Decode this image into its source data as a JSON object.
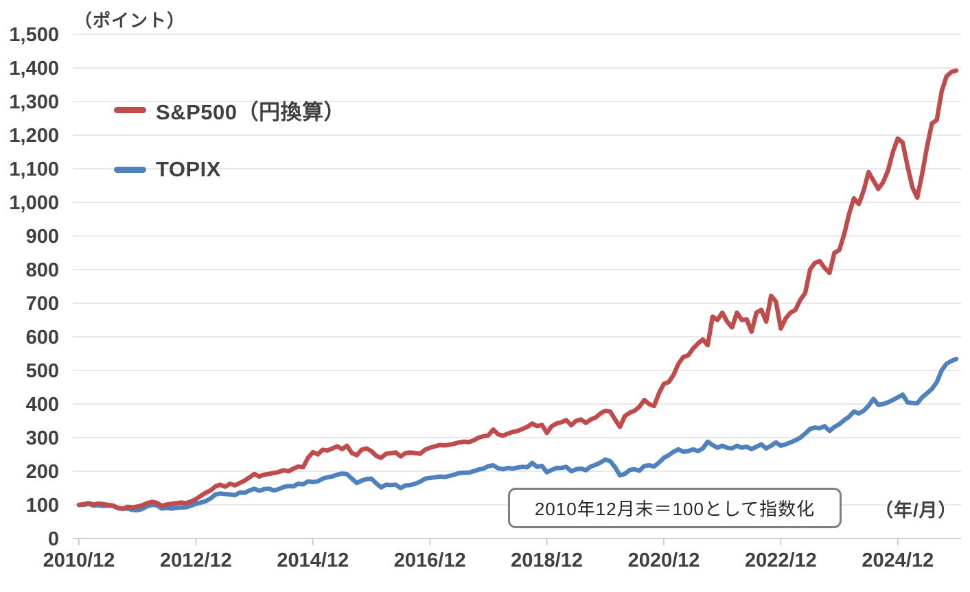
{
  "chart": {
    "y_unit_label": "（ポイント）",
    "x_unit_label": "（年/月）",
    "annotation": "2010年12月末＝100として指数化",
    "colors": {
      "sp500_red": "#bf4b4b",
      "topix_blue": "#4e81bd",
      "gridline": "#d9d9d9",
      "axis_line": "#bfbfbf",
      "label_text": "#404040"
    }
  },
  "chart_data": {
    "type": "line",
    "title": "",
    "xlabel": "（年/月）",
    "ylabel": "（ポイント）",
    "x_range": {
      "start": "2010/12",
      "end": "2025/12",
      "step": "1 month"
    },
    "x_tick_labels": [
      "2010/12",
      "2012/12",
      "2014/12",
      "2016/12",
      "2018/12",
      "2020/12",
      "2022/12",
      "2024/12"
    ],
    "x_tick_month_indices": [
      0,
      24,
      48,
      72,
      96,
      120,
      144,
      168
    ],
    "ylim": [
      0,
      1500
    ],
    "y_tick_step": 100,
    "y_tick_labels": [
      "0",
      "100",
      "200",
      "300",
      "400",
      "500",
      "600",
      "700",
      "800",
      "900",
      "1,000",
      "1,100",
      "1,200",
      "1,300",
      "1,400",
      "1,500"
    ],
    "grid": "horizontal-only",
    "legend_position": "inside-top-left",
    "baseline_note": "2010年12月末＝100として指数化",
    "series": [
      {
        "name": "topix",
        "label": "TOPIX",
        "color": "#4e81bd",
        "values": [
          100,
          100,
          103,
          98,
          99,
          97,
          98,
          97,
          90,
          89,
          89,
          85,
          84,
          88,
          96,
          100,
          99,
          89,
          91,
          89,
          91,
          92,
          93,
          98,
          103,
          107,
          111,
          119,
          131,
          134,
          132,
          131,
          129,
          137,
          136,
          143,
          148,
          142,
          147,
          148,
          143,
          147,
          153,
          156,
          155,
          163,
          161,
          170,
          168,
          170,
          178,
          182,
          185,
          190,
          193,
          191,
          178,
          165,
          172,
          177,
          178,
          164,
          152,
          160,
          159,
          160,
          150,
          158,
          159,
          163,
          169,
          178,
          180,
          182,
          184,
          183,
          186,
          190,
          195,
          196,
          196,
          200,
          205,
          208,
          215,
          218,
          209,
          206,
          210,
          208,
          211,
          213,
          212,
          225,
          213,
          216,
          197,
          204,
          210,
          210,
          213,
          200,
          206,
          208,
          203,
          214,
          219,
          226,
          235,
          230,
          212,
          188,
          192,
          204,
          206,
          202,
          216,
          218,
          214,
          226,
          240,
          248,
          258,
          265,
          258,
          260,
          265,
          260,
          268,
          288,
          278,
          270,
          276,
          270,
          268,
          276,
          270,
          273,
          266,
          273,
          280,
          268,
          276,
          286,
          276,
          280,
          286,
          292,
          300,
          312,
          326,
          330,
          328,
          334,
          320,
          332,
          340,
          352,
          362,
          378,
          372,
          380,
          395,
          415,
          398,
          400,
          405,
          412,
          420,
          428,
          405,
          403,
          402,
          420,
          432,
          445,
          465,
          500,
          520,
          528,
          534
        ]
      },
      {
        "name": "sp500_yen",
        "label": "S&P500（円換算）",
        "color": "#bf4b4b",
        "values": [
          100,
          102,
          105,
          101,
          104,
          102,
          100,
          98,
          91,
          88,
          94,
          92,
          95,
          99,
          105,
          109,
          106,
          97,
          101,
          103,
          105,
          107,
          105,
          110,
          117,
          127,
          136,
          143,
          155,
          160,
          154,
          163,
          158,
          165,
          172,
          182,
          192,
          184,
          190,
          192,
          195,
          198,
          203,
          200,
          208,
          214,
          212,
          240,
          257,
          250,
          264,
          262,
          268,
          274,
          266,
          276,
          254,
          248,
          264,
          268,
          260,
          246,
          240,
          252,
          254,
          256,
          244,
          254,
          256,
          254,
          252,
          264,
          270,
          274,
          278,
          277,
          279,
          282,
          286,
          288,
          287,
          292,
          300,
          304,
          307,
          324,
          310,
          306,
          312,
          317,
          320,
          326,
          332,
          342,
          334,
          338,
          314,
          334,
          342,
          346,
          352,
          337,
          350,
          354,
          344,
          354,
          360,
          372,
          380,
          378,
          354,
          332,
          364,
          374,
          380,
          392,
          412,
          400,
          394,
          432,
          460,
          465,
          487,
          520,
          540,
          545,
          565,
          580,
          592,
          575,
          660,
          650,
          672,
          645,
          628,
          672,
          650,
          652,
          615,
          672,
          680,
          645,
          722,
          705,
          625,
          655,
          672,
          680,
          710,
          730,
          800,
          820,
          825,
          805,
          790,
          850,
          858,
          905,
          965,
          1012,
          995,
          1035,
          1090,
          1065,
          1040,
          1060,
          1095,
          1150,
          1190,
          1178,
          1108,
          1045,
          1014,
          1085,
          1165,
          1235,
          1245,
          1330,
          1375,
          1388,
          1392
        ]
      }
    ]
  }
}
